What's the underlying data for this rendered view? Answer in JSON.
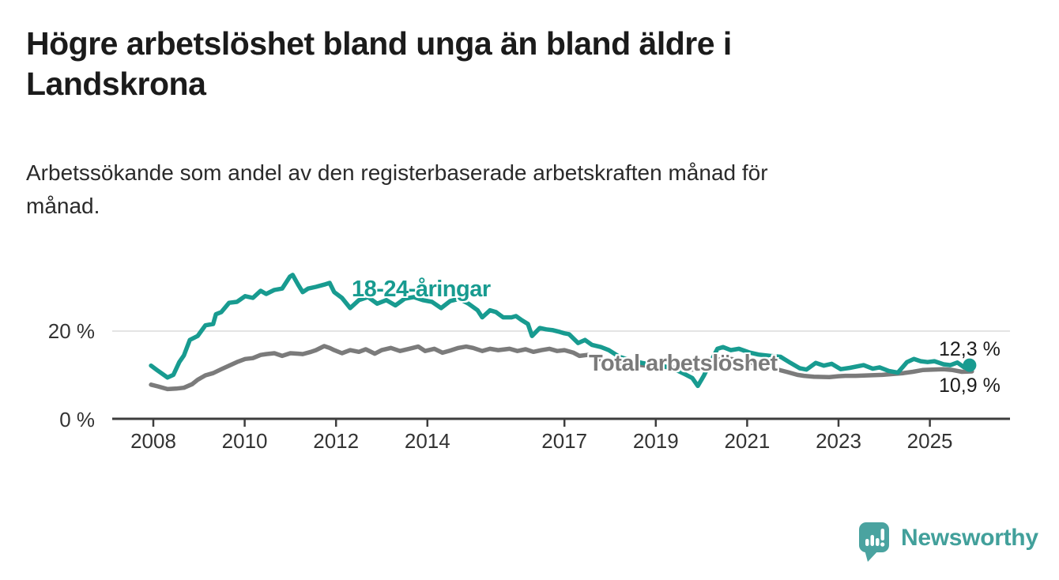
{
  "header": {
    "title_line1": "Högre arbetslöshet bland unga än bland äldre i",
    "title_line2": "Landskrona",
    "subtitle_line1": "Arbetssökande som andel av den registerbaserade arbetskraften månad för",
    "subtitle_line2": "månad."
  },
  "footer": {
    "brand": "Newsworthy"
  },
  "chart_data": {
    "type": "line",
    "title": "Högre arbetslöshet bland unga än bland äldre i Landskrona",
    "subtitle": "Arbetssökande som andel av den registerbaserade arbetskraften månad för månad.",
    "unit": "%",
    "xlim": [
      2007.1,
      2026.75
    ],
    "ylim": [
      0,
      35.9
    ],
    "grid": "horizontal-20-only",
    "legend_position": "inline-labels",
    "colors": {
      "youth": "#189b90",
      "total": "#7b7b7b",
      "axis": "#3d3d3d",
      "gridline": "#dcdcdc",
      "logo_teal": "#4aa3a0"
    },
    "x_axis": {
      "ticks": [
        {
          "value": 2008,
          "label": "2008"
        },
        {
          "value": 2010,
          "label": "2010"
        },
        {
          "value": 2012,
          "label": "2012"
        },
        {
          "value": 2014,
          "label": "2014"
        },
        {
          "value": 2017,
          "label": "2017"
        },
        {
          "value": 2019,
          "label": "2019"
        },
        {
          "value": 2021,
          "label": "2021"
        },
        {
          "value": 2023,
          "label": "2023"
        },
        {
          "value": 2025,
          "label": "2025"
        }
      ]
    },
    "y_axis": {
      "ticks": [
        {
          "value": 0,
          "label": "0 %"
        },
        {
          "value": 20,
          "label": "20 %"
        }
      ],
      "grid_values": [
        20
      ]
    },
    "series": [
      {
        "name": "18-24-åringar",
        "color": "#189b90",
        "end_label": "12,3 %",
        "end_value": 12.3,
        "end_dot": true,
        "points": [
          [
            2007.95,
            12.2
          ],
          [
            2008.08,
            11.2
          ],
          [
            2008.2,
            10.3
          ],
          [
            2008.31,
            9.5
          ],
          [
            2008.44,
            10.1
          ],
          [
            2008.57,
            13.0
          ],
          [
            2008.67,
            14.5
          ],
          [
            2008.8,
            18.0
          ],
          [
            2008.97,
            18.9
          ],
          [
            2009.14,
            21.3
          ],
          [
            2009.31,
            21.6
          ],
          [
            2009.37,
            23.8
          ],
          [
            2009.49,
            24.3
          ],
          [
            2009.66,
            26.4
          ],
          [
            2009.83,
            26.6
          ],
          [
            2010.01,
            27.9
          ],
          [
            2010.18,
            27.5
          ],
          [
            2010.35,
            29.1
          ],
          [
            2010.47,
            28.4
          ],
          [
            2010.65,
            29.3
          ],
          [
            2010.82,
            29.6
          ],
          [
            2010.99,
            32.3
          ],
          [
            2011.05,
            32.7
          ],
          [
            2011.17,
            30.5
          ],
          [
            2011.27,
            28.8
          ],
          [
            2011.39,
            29.6
          ],
          [
            2011.56,
            30.0
          ],
          [
            2011.74,
            30.5
          ],
          [
            2011.86,
            30.9
          ],
          [
            2011.96,
            28.8
          ],
          [
            2012.13,
            27.5
          ],
          [
            2012.31,
            25.2
          ],
          [
            2012.5,
            27.0
          ],
          [
            2012.7,
            27.7
          ],
          [
            2012.9,
            26.2
          ],
          [
            2013.1,
            27.0
          ],
          [
            2013.3,
            25.8
          ],
          [
            2013.5,
            27.3
          ],
          [
            2013.7,
            27.7
          ],
          [
            2013.9,
            27.0
          ],
          [
            2014.1,
            26.6
          ],
          [
            2014.3,
            25.2
          ],
          [
            2014.5,
            26.8
          ],
          [
            2014.7,
            27.3
          ],
          [
            2014.9,
            26.2
          ],
          [
            2015.1,
            24.7
          ],
          [
            2015.2,
            23.1
          ],
          [
            2015.37,
            24.7
          ],
          [
            2015.5,
            24.3
          ],
          [
            2015.66,
            23.1
          ],
          [
            2015.84,
            23.1
          ],
          [
            2015.94,
            23.4
          ],
          [
            2016.06,
            22.5
          ],
          [
            2016.2,
            21.6
          ],
          [
            2016.29,
            18.9
          ],
          [
            2016.46,
            20.7
          ],
          [
            2016.6,
            20.4
          ],
          [
            2016.75,
            20.2
          ],
          [
            2016.9,
            19.8
          ],
          [
            2017.0,
            19.5
          ],
          [
            2017.1,
            19.3
          ],
          [
            2017.3,
            17.3
          ],
          [
            2017.45,
            18.0
          ],
          [
            2017.6,
            16.9
          ],
          [
            2017.8,
            16.4
          ],
          [
            2017.97,
            15.7
          ],
          [
            2018.2,
            14.2
          ],
          [
            2018.45,
            13.4
          ],
          [
            2018.7,
            12.8
          ],
          [
            2018.95,
            12.4
          ],
          [
            2019.2,
            12.0
          ],
          [
            2019.45,
            11.2
          ],
          [
            2019.65,
            10.2
          ],
          [
            2019.8,
            9.4
          ],
          [
            2019.92,
            7.6
          ],
          [
            2020.05,
            9.9
          ],
          [
            2020.2,
            13.0
          ],
          [
            2020.35,
            16.0
          ],
          [
            2020.47,
            16.4
          ],
          [
            2020.64,
            15.7
          ],
          [
            2020.82,
            16.0
          ],
          [
            2021.04,
            15.2
          ],
          [
            2021.25,
            14.7
          ],
          [
            2021.5,
            14.4
          ],
          [
            2021.73,
            14.2
          ],
          [
            2021.95,
            12.8
          ],
          [
            2022.15,
            11.6
          ],
          [
            2022.3,
            11.3
          ],
          [
            2022.5,
            12.8
          ],
          [
            2022.68,
            12.2
          ],
          [
            2022.85,
            12.6
          ],
          [
            2023.05,
            11.4
          ],
          [
            2023.25,
            11.7
          ],
          [
            2023.55,
            12.3
          ],
          [
            2023.75,
            11.5
          ],
          [
            2023.9,
            11.8
          ],
          [
            2024.1,
            11.0
          ],
          [
            2024.3,
            10.6
          ],
          [
            2024.5,
            13.0
          ],
          [
            2024.65,
            13.7
          ],
          [
            2024.8,
            13.2
          ],
          [
            2024.95,
            13.0
          ],
          [
            2025.1,
            13.2
          ],
          [
            2025.3,
            12.5
          ],
          [
            2025.45,
            12.3
          ],
          [
            2025.6,
            12.9
          ],
          [
            2025.75,
            11.8
          ],
          [
            2025.87,
            12.3
          ]
        ]
      },
      {
        "name": "Total arbetslöshet",
        "color": "#7b7b7b",
        "end_label": "10,9 %",
        "end_value": 10.9,
        "end_dot": false,
        "points": [
          [
            2007.95,
            7.9
          ],
          [
            2008.1,
            7.5
          ],
          [
            2008.31,
            6.9
          ],
          [
            2008.5,
            7.0
          ],
          [
            2008.67,
            7.2
          ],
          [
            2008.85,
            8.0
          ],
          [
            2008.97,
            9.0
          ],
          [
            2009.14,
            10.0
          ],
          [
            2009.31,
            10.5
          ],
          [
            2009.49,
            11.4
          ],
          [
            2009.66,
            12.2
          ],
          [
            2009.83,
            13.0
          ],
          [
            2010.01,
            13.7
          ],
          [
            2010.18,
            13.9
          ],
          [
            2010.35,
            14.6
          ],
          [
            2010.47,
            14.8
          ],
          [
            2010.65,
            15.0
          ],
          [
            2010.82,
            14.4
          ],
          [
            2011.0,
            15.0
          ],
          [
            2011.17,
            14.9
          ],
          [
            2011.27,
            14.8
          ],
          [
            2011.45,
            15.3
          ],
          [
            2011.56,
            15.7
          ],
          [
            2011.74,
            16.6
          ],
          [
            2011.86,
            16.2
          ],
          [
            2011.96,
            15.7
          ],
          [
            2012.13,
            15.0
          ],
          [
            2012.31,
            15.7
          ],
          [
            2012.5,
            15.3
          ],
          [
            2012.65,
            15.9
          ],
          [
            2012.85,
            14.9
          ],
          [
            2013.0,
            15.7
          ],
          [
            2013.2,
            16.2
          ],
          [
            2013.4,
            15.5
          ],
          [
            2013.6,
            16.0
          ],
          [
            2013.8,
            16.5
          ],
          [
            2013.95,
            15.5
          ],
          [
            2014.15,
            16.0
          ],
          [
            2014.33,
            15.1
          ],
          [
            2014.5,
            15.6
          ],
          [
            2014.68,
            16.2
          ],
          [
            2014.85,
            16.5
          ],
          [
            2015.0,
            16.2
          ],
          [
            2015.2,
            15.5
          ],
          [
            2015.37,
            16.0
          ],
          [
            2015.55,
            15.7
          ],
          [
            2015.8,
            16.0
          ],
          [
            2015.97,
            15.5
          ],
          [
            2016.15,
            15.9
          ],
          [
            2016.32,
            15.3
          ],
          [
            2016.5,
            15.7
          ],
          [
            2016.67,
            16.0
          ],
          [
            2016.84,
            15.5
          ],
          [
            2017.0,
            15.7
          ],
          [
            2017.2,
            15.1
          ],
          [
            2017.33,
            14.4
          ],
          [
            2017.5,
            14.6
          ],
          [
            2017.7,
            13.8
          ],
          [
            2018.0,
            13.2
          ],
          [
            2018.3,
            12.7
          ],
          [
            2018.6,
            12.4
          ],
          [
            2018.9,
            12.1
          ],
          [
            2019.2,
            11.9
          ],
          [
            2019.5,
            11.6
          ],
          [
            2019.8,
            11.3
          ],
          [
            2020.1,
            11.8
          ],
          [
            2020.3,
            13.4
          ],
          [
            2020.55,
            13.8
          ],
          [
            2020.8,
            13.5
          ],
          [
            2021.05,
            13.0
          ],
          [
            2021.3,
            12.3
          ],
          [
            2021.6,
            11.5
          ],
          [
            2021.9,
            10.7
          ],
          [
            2022.1,
            10.1
          ],
          [
            2022.24,
            9.9
          ],
          [
            2022.46,
            9.7
          ],
          [
            2022.8,
            9.6
          ],
          [
            2023.0,
            9.8
          ],
          [
            2023.15,
            9.9
          ],
          [
            2023.38,
            9.9
          ],
          [
            2023.67,
            10.0
          ],
          [
            2023.96,
            10.1
          ],
          [
            2024.2,
            10.3
          ],
          [
            2024.42,
            10.5
          ],
          [
            2024.63,
            10.8
          ],
          [
            2024.84,
            11.2
          ],
          [
            2025.06,
            11.3
          ],
          [
            2025.3,
            11.4
          ],
          [
            2025.5,
            11.2
          ],
          [
            2025.7,
            10.8
          ],
          [
            2025.92,
            10.9
          ]
        ]
      }
    ]
  }
}
